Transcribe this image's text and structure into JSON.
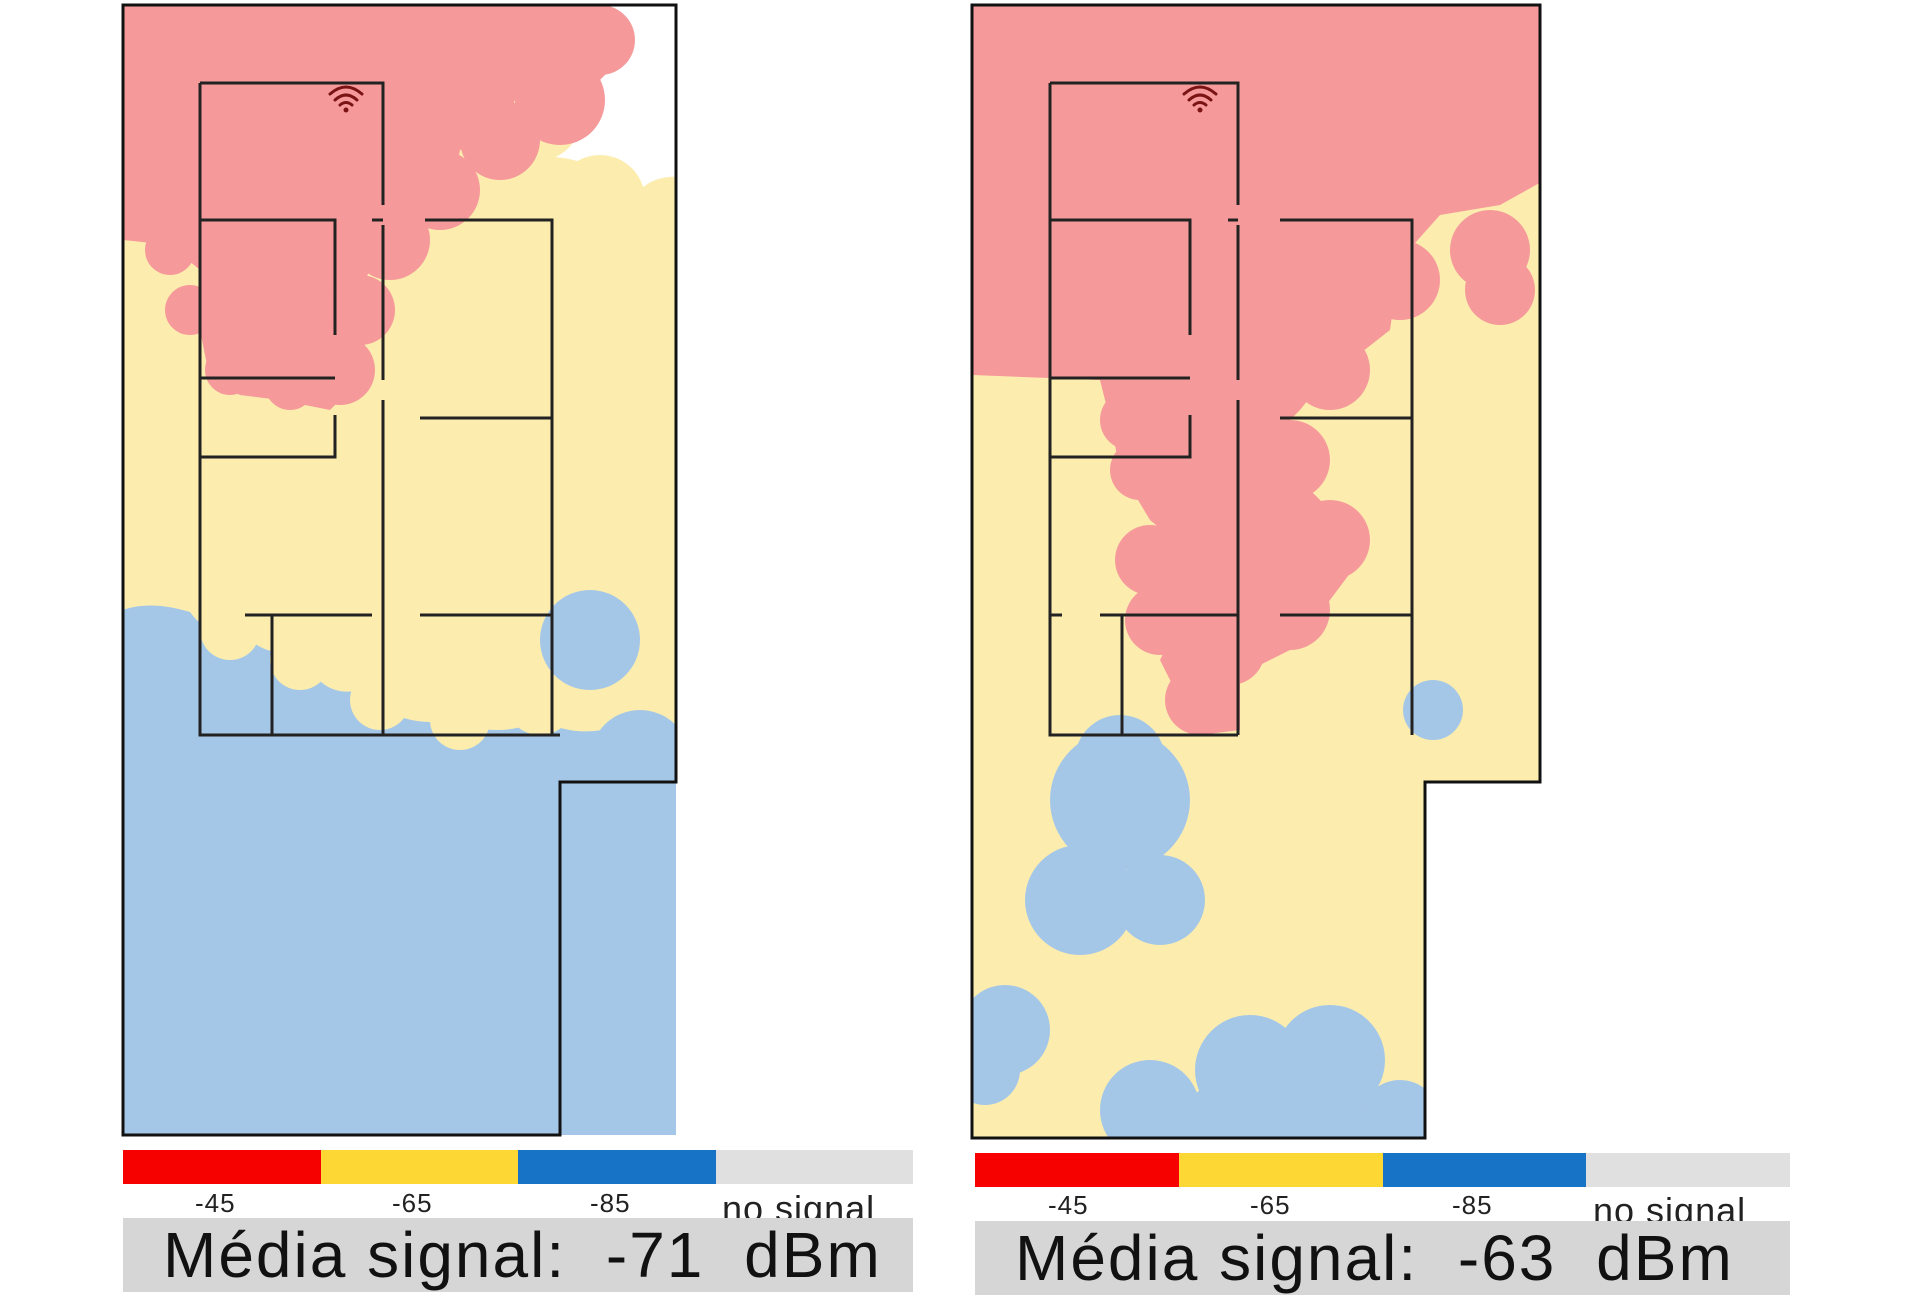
{
  "colors": {
    "strong": "#f6999b",
    "medium": "#fcedaf",
    "weak": "#a5c7e7",
    "legend": [
      "#f70000",
      "#fdd835",
      "#1673c5",
      "#e0e0e0"
    ]
  },
  "icons": {
    "router": "wifi-icon"
  },
  "maps": [
    {
      "legend": {
        "ticks": [
          "-45",
          "-65",
          "-85"
        ],
        "no_signal": "no signal"
      },
      "summary": {
        "prefix": "Média signal:",
        "value": "-71",
        "unit": "dBm"
      }
    },
    {
      "legend": {
        "ticks": [
          "-45",
          "-65",
          "-85"
        ],
        "no_signal": "no signal"
      },
      "summary": {
        "prefix": "Média signal:",
        "value": "-63",
        "unit": "dBm"
      }
    }
  ]
}
